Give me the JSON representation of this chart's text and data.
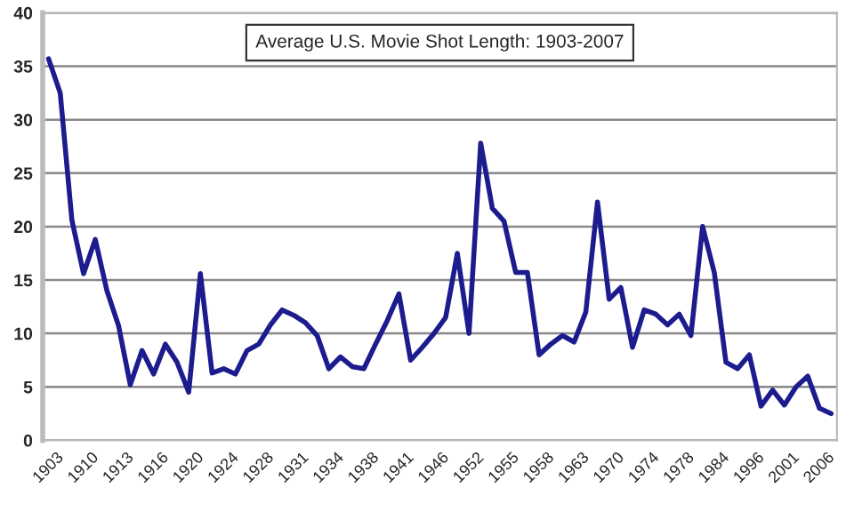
{
  "chart_data": {
    "type": "line",
    "title": "Average U.S. Movie Shot Length: 1903-2007",
    "categories": [
      "1903",
      null,
      null,
      "1910",
      null,
      null,
      "1913",
      null,
      null,
      "1916",
      null,
      null,
      "1920",
      null,
      null,
      "1924",
      null,
      null,
      "1928",
      null,
      null,
      "1931",
      null,
      null,
      "1934",
      null,
      null,
      "1938",
      null,
      null,
      "1941",
      null,
      null,
      "1946",
      null,
      null,
      "1952",
      null,
      null,
      "1955",
      null,
      null,
      "1958",
      null,
      null,
      "1963",
      null,
      null,
      "1970",
      null,
      null,
      "1974",
      null,
      null,
      "1978",
      null,
      null,
      "1984",
      null,
      null,
      "1996",
      null,
      null,
      "2001",
      null,
      null,
      "2006",
      null
    ],
    "series": [
      {
        "color": "#1c1c8e",
        "values": [
          35.7,
          32.5,
          20.6,
          15.6,
          18.8,
          14,
          10.7,
          5.2,
          8.4,
          6.2,
          9,
          7.3,
          4.5,
          15.6,
          6.3,
          6.7,
          6.2,
          8.4,
          9,
          10.8,
          12.2,
          11.7,
          11,
          9.8,
          6.7,
          7.8,
          6.9,
          6.7,
          9,
          11.2,
          13.7,
          7.5,
          8.7,
          10,
          11.5,
          17.5,
          10,
          27.8,
          21.7,
          20.5,
          15.7,
          15.7,
          8,
          9,
          9.8,
          9.2,
          12,
          22.3,
          13.2,
          14.3,
          8.7,
          12.2,
          11.8,
          10.8,
          11.8,
          9.8,
          20,
          15.7,
          7.3,
          6.7,
          8,
          3.2,
          4.7,
          3.3,
          5,
          6,
          3,
          2.5
        ]
      }
    ],
    "ylim": [
      0,
      40
    ],
    "yticks": [
      0,
      5,
      10,
      15,
      20,
      25,
      30,
      35,
      40
    ],
    "grid": "y",
    "marker": "none",
    "line_style": "solid"
  }
}
